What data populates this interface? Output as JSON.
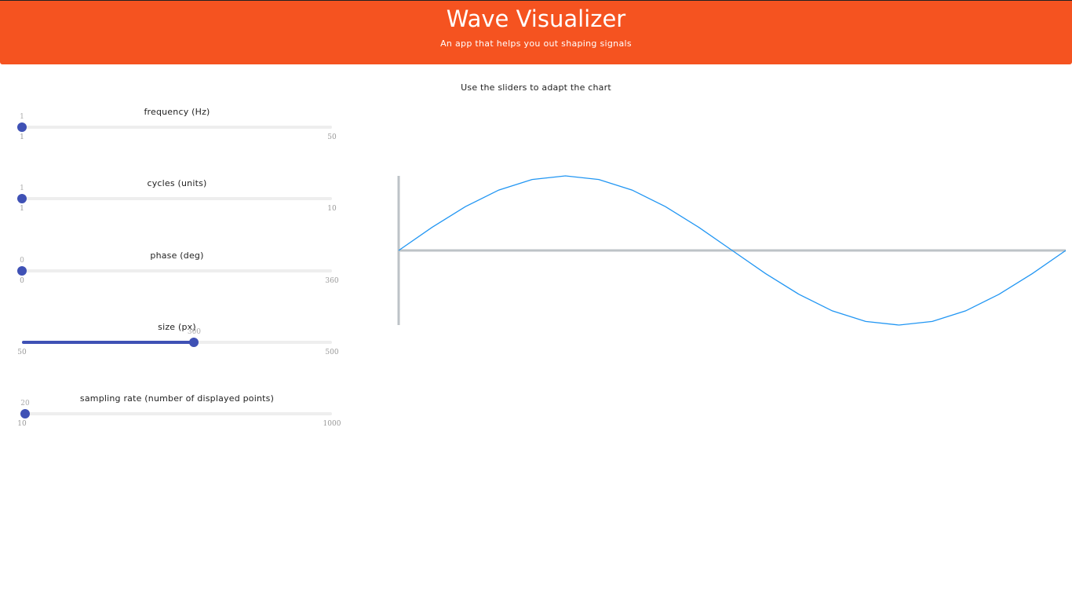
{
  "header": {
    "title": "Wave Visualizer",
    "subtitle": "An app that helps you out shaping signals"
  },
  "instruction": "Use the sliders to adapt the chart",
  "sliders": [
    {
      "label": "frequency (Hz)",
      "value": "1",
      "min": "1",
      "max": "50",
      "fraction": 0
    },
    {
      "label": "cycles (units)",
      "value": "1",
      "min": "1",
      "max": "10",
      "fraction": 0
    },
    {
      "label": "phase (deg)",
      "value": "0",
      "min": "0",
      "max": "360",
      "fraction": 0
    },
    {
      "label": "size (px)",
      "value": "300",
      "min": "50",
      "max": "500",
      "fraction": 0.5556
    },
    {
      "label": "sampling rate (number of displayed points)",
      "value": "20",
      "min": "10",
      "max": "1000",
      "fraction": 0.0101
    }
  ],
  "colors": {
    "header": "#f55320",
    "accent": "#3f51b5",
    "wave": "#2196f3",
    "axis": "#bdc3c7"
  },
  "chart_data": {
    "type": "line",
    "title": "",
    "xlabel": "",
    "ylabel": "",
    "frequency": 1,
    "cycles": 1,
    "phase_deg": 0,
    "points": 20,
    "ylim": [
      -1,
      1
    ],
    "grid": false
  }
}
